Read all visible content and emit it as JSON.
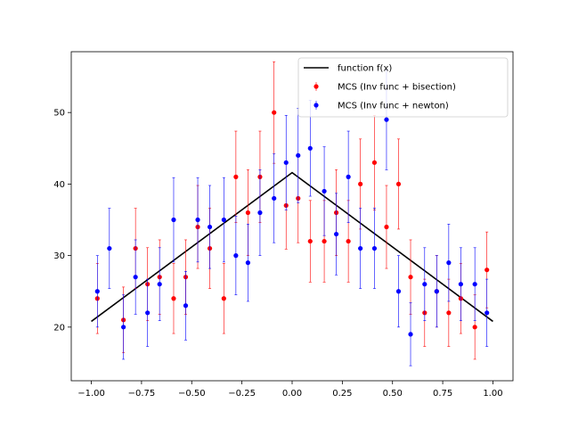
{
  "chart_data": {
    "type": "scatter",
    "title": "",
    "xlabel": "",
    "ylabel": "",
    "xlim": [
      -1.1,
      1.1
    ],
    "ylim": [
      12.5,
      58.5
    ],
    "xticks": [
      -1.0,
      -0.75,
      -0.5,
      -0.25,
      0.0,
      0.25,
      0.5,
      0.75,
      1.0
    ],
    "xtick_labels": [
      "−1.00",
      "−0.75",
      "−0.50",
      "−0.25",
      "0.00",
      "0.25",
      "0.50",
      "0.75",
      "1.00"
    ],
    "yticks": [
      20,
      30,
      40,
      50
    ],
    "ytick_labels": [
      "20",
      "30",
      "40",
      "50"
    ],
    "grid": false,
    "legend_position": "top-right",
    "series": [
      {
        "name": "function f(x)",
        "kind": "line",
        "color": "#000000",
        "x": [
          -1.0,
          0.0,
          1.0
        ],
        "y": [
          20.8,
          41.6,
          20.8
        ]
      },
      {
        "name": "MCS (Inv func + bisection)",
        "kind": "errorbar",
        "color": "#ff0000",
        "x": [
          -0.97,
          -0.84,
          -0.78,
          -0.72,
          -0.66,
          -0.59,
          -0.53,
          -0.47,
          -0.41,
          -0.34,
          -0.28,
          -0.22,
          -0.16,
          -0.09,
          -0.03,
          0.03,
          0.09,
          0.16,
          0.22,
          0.28,
          0.34,
          0.41,
          0.47,
          0.53,
          0.59,
          0.66,
          0.72,
          0.78,
          0.84,
          0.91,
          0.97
        ],
        "y": [
          24,
          21,
          31,
          26,
          27,
          24,
          27,
          34,
          31,
          24,
          41,
          36,
          41,
          50,
          37,
          38,
          32,
          32,
          36,
          32,
          40,
          43,
          34,
          40,
          27,
          22,
          25,
          22,
          24,
          20,
          28
        ],
        "yerr": [
          4.9,
          4.6,
          5.6,
          5.1,
          5.2,
          4.9,
          5.2,
          5.8,
          5.6,
          4.9,
          6.4,
          6.0,
          6.4,
          7.1,
          6.1,
          6.2,
          5.7,
          5.7,
          6.0,
          5.7,
          6.3,
          6.6,
          5.8,
          6.3,
          5.2,
          4.7,
          5.0,
          4.7,
          4.9,
          4.5,
          5.3
        ]
      },
      {
        "name": "MCS (Inv func + newton)",
        "kind": "errorbar",
        "color": "#0000ff",
        "x": [
          -0.97,
          -0.91,
          -0.84,
          -0.78,
          -0.72,
          -0.66,
          -0.59,
          -0.53,
          -0.47,
          -0.41,
          -0.34,
          -0.28,
          -0.22,
          -0.16,
          -0.09,
          -0.03,
          0.03,
          0.09,
          0.16,
          0.22,
          0.28,
          0.34,
          0.41,
          0.47,
          0.53,
          0.59,
          0.66,
          0.72,
          0.78,
          0.84,
          0.91,
          0.97
        ],
        "y": [
          25,
          31,
          20,
          27,
          22,
          26,
          35,
          23,
          35,
          34,
          35,
          30,
          29,
          36,
          38,
          43,
          44,
          45,
          39,
          33,
          41,
          31,
          31,
          49,
          25,
          19,
          26,
          25,
          29,
          26,
          26,
          22
        ],
        "yerr": [
          5.0,
          5.6,
          4.5,
          5.2,
          4.7,
          5.1,
          5.9,
          4.8,
          5.9,
          5.8,
          5.9,
          5.5,
          5.4,
          6.0,
          6.2,
          6.6,
          6.6,
          6.7,
          6.2,
          5.7,
          6.4,
          5.6,
          5.6,
          7.0,
          5.0,
          4.4,
          5.1,
          5.0,
          5.4,
          5.1,
          5.1,
          4.7
        ]
      }
    ]
  }
}
